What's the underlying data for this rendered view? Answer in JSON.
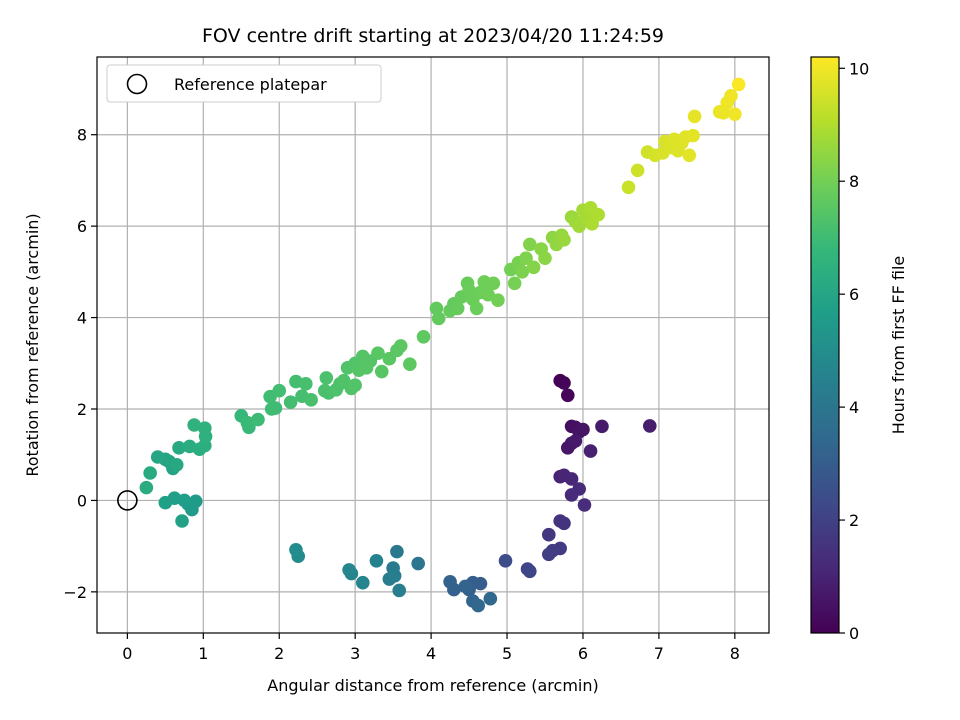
{
  "chart_data": {
    "type": "scatter",
    "title": "FOV centre drift starting at 2023/04/20 11:24:59",
    "xlabel": "Angular distance from reference (arcmin)",
    "ylabel": "Rotation from reference (arcmin)",
    "xlim": [
      -0.4,
      8.45
    ],
    "ylim": [
      -2.9,
      9.7
    ],
    "x_ticks": [
      0,
      1,
      2,
      3,
      4,
      5,
      6,
      7,
      8
    ],
    "y_ticks": [
      -2,
      0,
      2,
      4,
      6,
      8
    ],
    "grid": true,
    "legend": {
      "placement": "top-left",
      "entries": [
        "Reference platepar"
      ]
    },
    "reference_point": {
      "x": 0,
      "y": 0,
      "marker": "open-circle"
    },
    "colorbar": {
      "label": "Hours from first FF file",
      "range": [
        0,
        10.2
      ],
      "ticks": [
        0,
        2,
        4,
        6,
        8,
        10
      ],
      "colormap": "viridis"
    },
    "colormap_stops": [
      "#440154",
      "#482878",
      "#3e4989",
      "#31688e",
      "#26828e",
      "#1f9e89",
      "#35b779",
      "#6ece58",
      "#b5de2b",
      "#fde725"
    ],
    "points": [
      {
        "x": 5.7,
        "y": 2.62,
        "h": 0.05
      },
      {
        "x": 5.75,
        "y": 2.57,
        "h": 0.1
      },
      {
        "x": 5.8,
        "y": 2.3,
        "h": 0.15
      },
      {
        "x": 5.85,
        "y": 1.62,
        "h": 0.4
      },
      {
        "x": 5.9,
        "y": 1.6,
        "h": 0.45
      },
      {
        "x": 5.95,
        "y": 1.5,
        "h": 0.5
      },
      {
        "x": 6.0,
        "y": 1.55,
        "h": 0.55
      },
      {
        "x": 5.85,
        "y": 1.25,
        "h": 0.6
      },
      {
        "x": 5.8,
        "y": 1.15,
        "h": 0.65
      },
      {
        "x": 5.9,
        "y": 1.3,
        "h": 0.7
      },
      {
        "x": 6.25,
        "y": 1.62,
        "h": 0.75
      },
      {
        "x": 6.88,
        "y": 1.63,
        "h": 0.8
      },
      {
        "x": 6.1,
        "y": 1.08,
        "h": 0.9
      },
      {
        "x": 5.7,
        "y": 0.52,
        "h": 1.0
      },
      {
        "x": 5.75,
        "y": 0.55,
        "h": 1.05
      },
      {
        "x": 5.85,
        "y": 0.47,
        "h": 1.1
      },
      {
        "x": 5.95,
        "y": 0.25,
        "h": 1.2
      },
      {
        "x": 5.85,
        "y": 0.12,
        "h": 1.25
      },
      {
        "x": 6.02,
        "y": -0.1,
        "h": 1.3
      },
      {
        "x": 5.7,
        "y": -0.45,
        "h": 1.5
      },
      {
        "x": 5.75,
        "y": -0.5,
        "h": 1.55
      },
      {
        "x": 5.55,
        "y": -0.75,
        "h": 1.6
      },
      {
        "x": 5.7,
        "y": -1.05,
        "h": 1.8
      },
      {
        "x": 5.6,
        "y": -1.1,
        "h": 1.85
      },
      {
        "x": 5.55,
        "y": -1.18,
        "h": 1.9
      },
      {
        "x": 5.27,
        "y": -1.5,
        "h": 2.1
      },
      {
        "x": 5.3,
        "y": -1.55,
        "h": 2.15
      },
      {
        "x": 4.98,
        "y": -1.32,
        "h": 2.4
      },
      {
        "x": 4.55,
        "y": -1.8,
        "h": 3.0
      },
      {
        "x": 4.65,
        "y": -1.82,
        "h": 3.05
      },
      {
        "x": 4.5,
        "y": -1.95,
        "h": 3.1
      },
      {
        "x": 4.3,
        "y": -1.95,
        "h": 3.15
      },
      {
        "x": 4.25,
        "y": -1.78,
        "h": 3.2
      },
      {
        "x": 4.45,
        "y": -1.88,
        "h": 3.25
      },
      {
        "x": 4.55,
        "y": -2.2,
        "h": 3.3
      },
      {
        "x": 4.62,
        "y": -2.3,
        "h": 3.35
      },
      {
        "x": 4.78,
        "y": -2.15,
        "h": 3.4
      },
      {
        "x": 3.83,
        "y": -1.38,
        "h": 4.0
      },
      {
        "x": 3.55,
        "y": -1.12,
        "h": 4.1
      },
      {
        "x": 3.5,
        "y": -1.48,
        "h": 4.2
      },
      {
        "x": 3.45,
        "y": -1.72,
        "h": 4.25
      },
      {
        "x": 3.52,
        "y": -1.65,
        "h": 4.3
      },
      {
        "x": 3.58,
        "y": -1.97,
        "h": 4.35
      },
      {
        "x": 3.28,
        "y": -1.32,
        "h": 4.5
      },
      {
        "x": 3.1,
        "y": -1.8,
        "h": 4.6
      },
      {
        "x": 2.95,
        "y": -1.6,
        "h": 4.65
      },
      {
        "x": 2.92,
        "y": -1.52,
        "h": 4.7
      },
      {
        "x": 2.25,
        "y": -1.22,
        "h": 4.9
      },
      {
        "x": 2.22,
        "y": -1.08,
        "h": 4.95
      },
      {
        "x": 0.8,
        "y": -0.08,
        "h": 5.5
      },
      {
        "x": 0.85,
        "y": -0.2,
        "h": 5.55
      },
      {
        "x": 0.9,
        "y": -0.02,
        "h": 5.6
      },
      {
        "x": 0.75,
        "y": 0.0,
        "h": 5.65
      },
      {
        "x": 0.62,
        "y": 0.05,
        "h": 5.7
      },
      {
        "x": 0.5,
        "y": -0.05,
        "h": 5.75
      },
      {
        "x": 0.72,
        "y": -0.45,
        "h": 5.8
      },
      {
        "x": 0.6,
        "y": 0.7,
        "h": 5.9
      },
      {
        "x": 0.55,
        "y": 0.85,
        "h": 5.95
      },
      {
        "x": 0.5,
        "y": 0.9,
        "h": 6.0
      },
      {
        "x": 0.4,
        "y": 0.95,
        "h": 6.05
      },
      {
        "x": 0.65,
        "y": 0.78,
        "h": 6.1
      },
      {
        "x": 0.68,
        "y": 1.15,
        "h": 6.15
      },
      {
        "x": 0.3,
        "y": 0.6,
        "h": 6.2
      },
      {
        "x": 0.25,
        "y": 0.28,
        "h": 6.25
      },
      {
        "x": 0.82,
        "y": 1.18,
        "h": 6.3
      },
      {
        "x": 0.95,
        "y": 1.12,
        "h": 6.35
      },
      {
        "x": 1.02,
        "y": 1.2,
        "h": 6.4
      },
      {
        "x": 1.03,
        "y": 1.4,
        "h": 6.45
      },
      {
        "x": 1.02,
        "y": 1.58,
        "h": 6.5
      },
      {
        "x": 0.88,
        "y": 1.65,
        "h": 6.55
      },
      {
        "x": 1.5,
        "y": 1.85,
        "h": 6.8
      },
      {
        "x": 1.6,
        "y": 1.6,
        "h": 6.85
      },
      {
        "x": 1.58,
        "y": 1.7,
        "h": 6.9
      },
      {
        "x": 1.72,
        "y": 1.77,
        "h": 6.95
      },
      {
        "x": 1.9,
        "y": 2.0,
        "h": 7.0
      },
      {
        "x": 1.95,
        "y": 2.02,
        "h": 7.02
      },
      {
        "x": 1.88,
        "y": 2.27,
        "h": 7.05
      },
      {
        "x": 2.0,
        "y": 2.4,
        "h": 7.08
      },
      {
        "x": 2.15,
        "y": 2.15,
        "h": 7.1
      },
      {
        "x": 2.22,
        "y": 2.6,
        "h": 7.12
      },
      {
        "x": 2.3,
        "y": 2.28,
        "h": 7.15
      },
      {
        "x": 2.35,
        "y": 2.55,
        "h": 7.18
      },
      {
        "x": 2.42,
        "y": 2.2,
        "h": 7.2
      },
      {
        "x": 2.6,
        "y": 2.4,
        "h": 7.22
      },
      {
        "x": 2.65,
        "y": 2.35,
        "h": 7.24
      },
      {
        "x": 2.62,
        "y": 2.68,
        "h": 7.26
      },
      {
        "x": 2.75,
        "y": 2.42,
        "h": 7.28
      },
      {
        "x": 2.8,
        "y": 2.55,
        "h": 7.3
      },
      {
        "x": 2.85,
        "y": 2.62,
        "h": 7.32
      },
      {
        "x": 2.9,
        "y": 2.9,
        "h": 7.34
      },
      {
        "x": 2.95,
        "y": 2.45,
        "h": 7.36
      },
      {
        "x": 3.0,
        "y": 2.52,
        "h": 7.38
      },
      {
        "x": 3.0,
        "y": 3.0,
        "h": 7.4
      },
      {
        "x": 3.1,
        "y": 3.15,
        "h": 7.42
      },
      {
        "x": 3.05,
        "y": 2.85,
        "h": 7.44
      },
      {
        "x": 3.2,
        "y": 3.05,
        "h": 7.46
      },
      {
        "x": 3.15,
        "y": 2.9,
        "h": 7.48
      },
      {
        "x": 3.35,
        "y": 2.82,
        "h": 7.5
      },
      {
        "x": 3.3,
        "y": 3.22,
        "h": 7.52
      },
      {
        "x": 3.45,
        "y": 3.1,
        "h": 7.54
      },
      {
        "x": 3.55,
        "y": 3.28,
        "h": 7.56
      },
      {
        "x": 3.6,
        "y": 3.38,
        "h": 7.58
      },
      {
        "x": 3.72,
        "y": 2.98,
        "h": 7.6
      },
      {
        "x": 3.9,
        "y": 3.58,
        "h": 7.65
      },
      {
        "x": 4.07,
        "y": 4.2,
        "h": 7.7
      },
      {
        "x": 4.1,
        "y": 3.98,
        "h": 7.72
      },
      {
        "x": 4.25,
        "y": 4.15,
        "h": 7.74
      },
      {
        "x": 4.3,
        "y": 4.3,
        "h": 7.76
      },
      {
        "x": 4.35,
        "y": 4.2,
        "h": 7.78
      },
      {
        "x": 4.4,
        "y": 4.45,
        "h": 7.8
      },
      {
        "x": 4.48,
        "y": 4.75,
        "h": 7.82
      },
      {
        "x": 4.5,
        "y": 4.6,
        "h": 7.84
      },
      {
        "x": 4.55,
        "y": 4.4,
        "h": 7.86
      },
      {
        "x": 4.6,
        "y": 4.2,
        "h": 7.88
      },
      {
        "x": 4.65,
        "y": 4.55,
        "h": 7.9
      },
      {
        "x": 4.7,
        "y": 4.78,
        "h": 7.92
      },
      {
        "x": 4.75,
        "y": 4.5,
        "h": 7.94
      },
      {
        "x": 4.82,
        "y": 4.75,
        "h": 7.96
      },
      {
        "x": 4.88,
        "y": 4.38,
        "h": 7.98
      },
      {
        "x": 5.05,
        "y": 5.05,
        "h": 8.0
      },
      {
        "x": 5.1,
        "y": 4.75,
        "h": 8.05
      },
      {
        "x": 5.15,
        "y": 5.2,
        "h": 8.1
      },
      {
        "x": 5.2,
        "y": 5.0,
        "h": 8.15
      },
      {
        "x": 5.25,
        "y": 5.3,
        "h": 8.2
      },
      {
        "x": 5.3,
        "y": 5.6,
        "h": 8.25
      },
      {
        "x": 5.35,
        "y": 5.1,
        "h": 8.3
      },
      {
        "x": 5.45,
        "y": 5.5,
        "h": 8.35
      },
      {
        "x": 5.5,
        "y": 5.3,
        "h": 8.4
      },
      {
        "x": 5.6,
        "y": 5.75,
        "h": 8.45
      },
      {
        "x": 5.65,
        "y": 5.6,
        "h": 8.5
      },
      {
        "x": 5.72,
        "y": 5.8,
        "h": 8.55
      },
      {
        "x": 5.75,
        "y": 5.7,
        "h": 8.6
      },
      {
        "x": 5.85,
        "y": 6.2,
        "h": 8.65
      },
      {
        "x": 5.9,
        "y": 6.1,
        "h": 8.7
      },
      {
        "x": 5.95,
        "y": 6.0,
        "h": 8.75
      },
      {
        "x": 6.0,
        "y": 6.35,
        "h": 8.8
      },
      {
        "x": 6.05,
        "y": 6.2,
        "h": 8.85
      },
      {
        "x": 6.1,
        "y": 6.4,
        "h": 8.9
      },
      {
        "x": 6.12,
        "y": 6.05,
        "h": 8.92
      },
      {
        "x": 6.2,
        "y": 6.25,
        "h": 8.95
      },
      {
        "x": 6.6,
        "y": 6.85,
        "h": 9.4
      },
      {
        "x": 6.72,
        "y": 7.22,
        "h": 9.45
      },
      {
        "x": 6.85,
        "y": 7.62,
        "h": 9.5
      },
      {
        "x": 6.95,
        "y": 7.55,
        "h": 9.55
      },
      {
        "x": 7.05,
        "y": 7.6,
        "h": 9.6
      },
      {
        "x": 7.08,
        "y": 7.85,
        "h": 9.62
      },
      {
        "x": 7.15,
        "y": 7.72,
        "h": 9.65
      },
      {
        "x": 7.2,
        "y": 7.9,
        "h": 9.68
      },
      {
        "x": 7.25,
        "y": 7.65,
        "h": 9.7
      },
      {
        "x": 7.3,
        "y": 7.82,
        "h": 9.72
      },
      {
        "x": 7.35,
        "y": 7.95,
        "h": 9.75
      },
      {
        "x": 7.4,
        "y": 7.55,
        "h": 9.78
      },
      {
        "x": 7.45,
        "y": 7.98,
        "h": 9.8
      },
      {
        "x": 7.47,
        "y": 8.4,
        "h": 9.82
      },
      {
        "x": 7.8,
        "y": 8.5,
        "h": 9.9
      },
      {
        "x": 7.85,
        "y": 8.48,
        "h": 9.92
      },
      {
        "x": 7.9,
        "y": 8.7,
        "h": 9.95
      },
      {
        "x": 7.95,
        "y": 8.85,
        "h": 9.98
      },
      {
        "x": 8.0,
        "y": 8.45,
        "h": 10.0
      },
      {
        "x": 8.05,
        "y": 9.1,
        "h": 10.15
      }
    ]
  }
}
